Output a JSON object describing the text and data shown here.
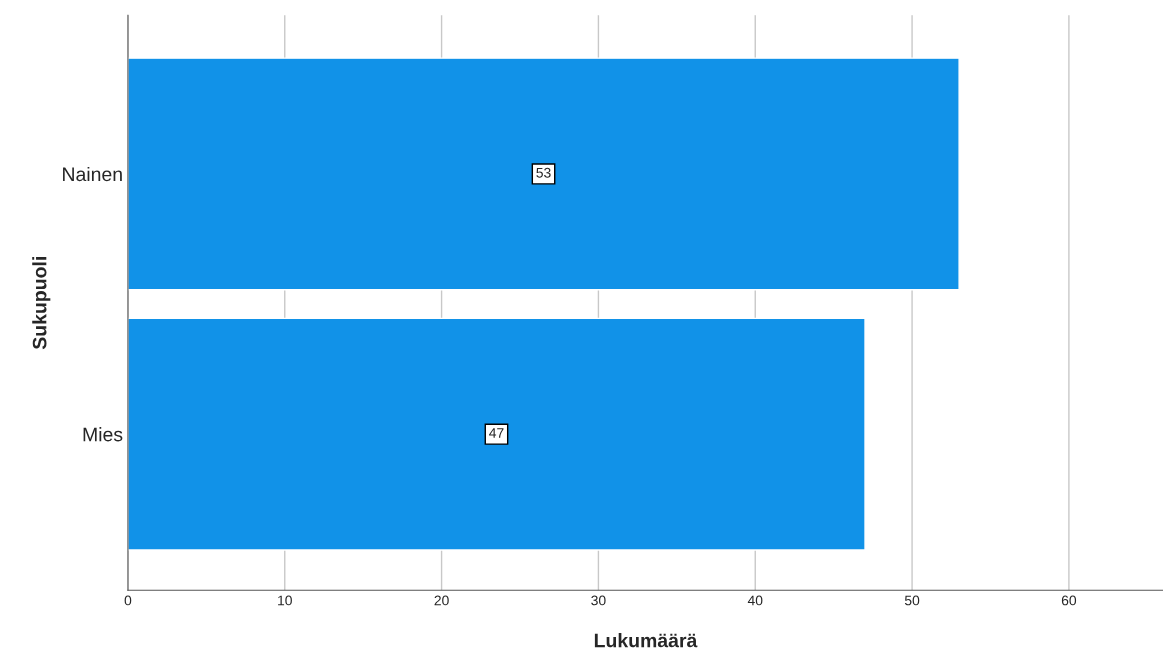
{
  "chart_data": {
    "type": "bar",
    "orientation": "horizontal",
    "categories": [
      "Nainen",
      "Mies"
    ],
    "values": [
      53,
      47
    ],
    "color": "#1192e8",
    "xlabel": "Lukumäärä",
    "ylabel": "Sukupuoli",
    "xlim": [
      0,
      66
    ],
    "xticks": [
      0,
      10,
      20,
      30,
      40,
      50,
      60
    ],
    "grid": "x",
    "data_labels": true
  }
}
